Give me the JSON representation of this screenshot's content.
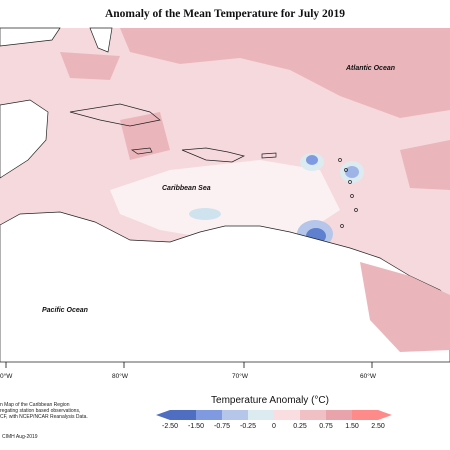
{
  "title": "Anomaly of the Mean Temperature for July 2019",
  "labels": {
    "atlantic": "Atlantic Ocean",
    "caribbean": "Caribbean Sea",
    "pacific": "Pacific Ocean"
  },
  "longitude_ticks": [
    "0°W",
    "80°W",
    "70°W",
    "60°W"
  ],
  "footnote_lines": [
    "n Map of the Caribbean Region",
    "regating station based observations,",
    "CF, with NCEP/NCAR Reanalysis Data."
  ],
  "credit": "CIMH Aug-2019",
  "legend": {
    "title": "Temperature Anomaly (°C)",
    "ticks": [
      "-2.50",
      "-1.50",
      "-0.75",
      "-0.25",
      "0",
      "0.25",
      "0.75",
      "1.50",
      "2.50"
    ],
    "colors": [
      "#4f6ec2",
      "#7f9ae0",
      "#b5c6ea",
      "#dcebf0",
      "#ffffff",
      "#f9dde0",
      "#f1c0c5",
      "#e9a3aa",
      "#ff8a8a"
    ]
  }
}
